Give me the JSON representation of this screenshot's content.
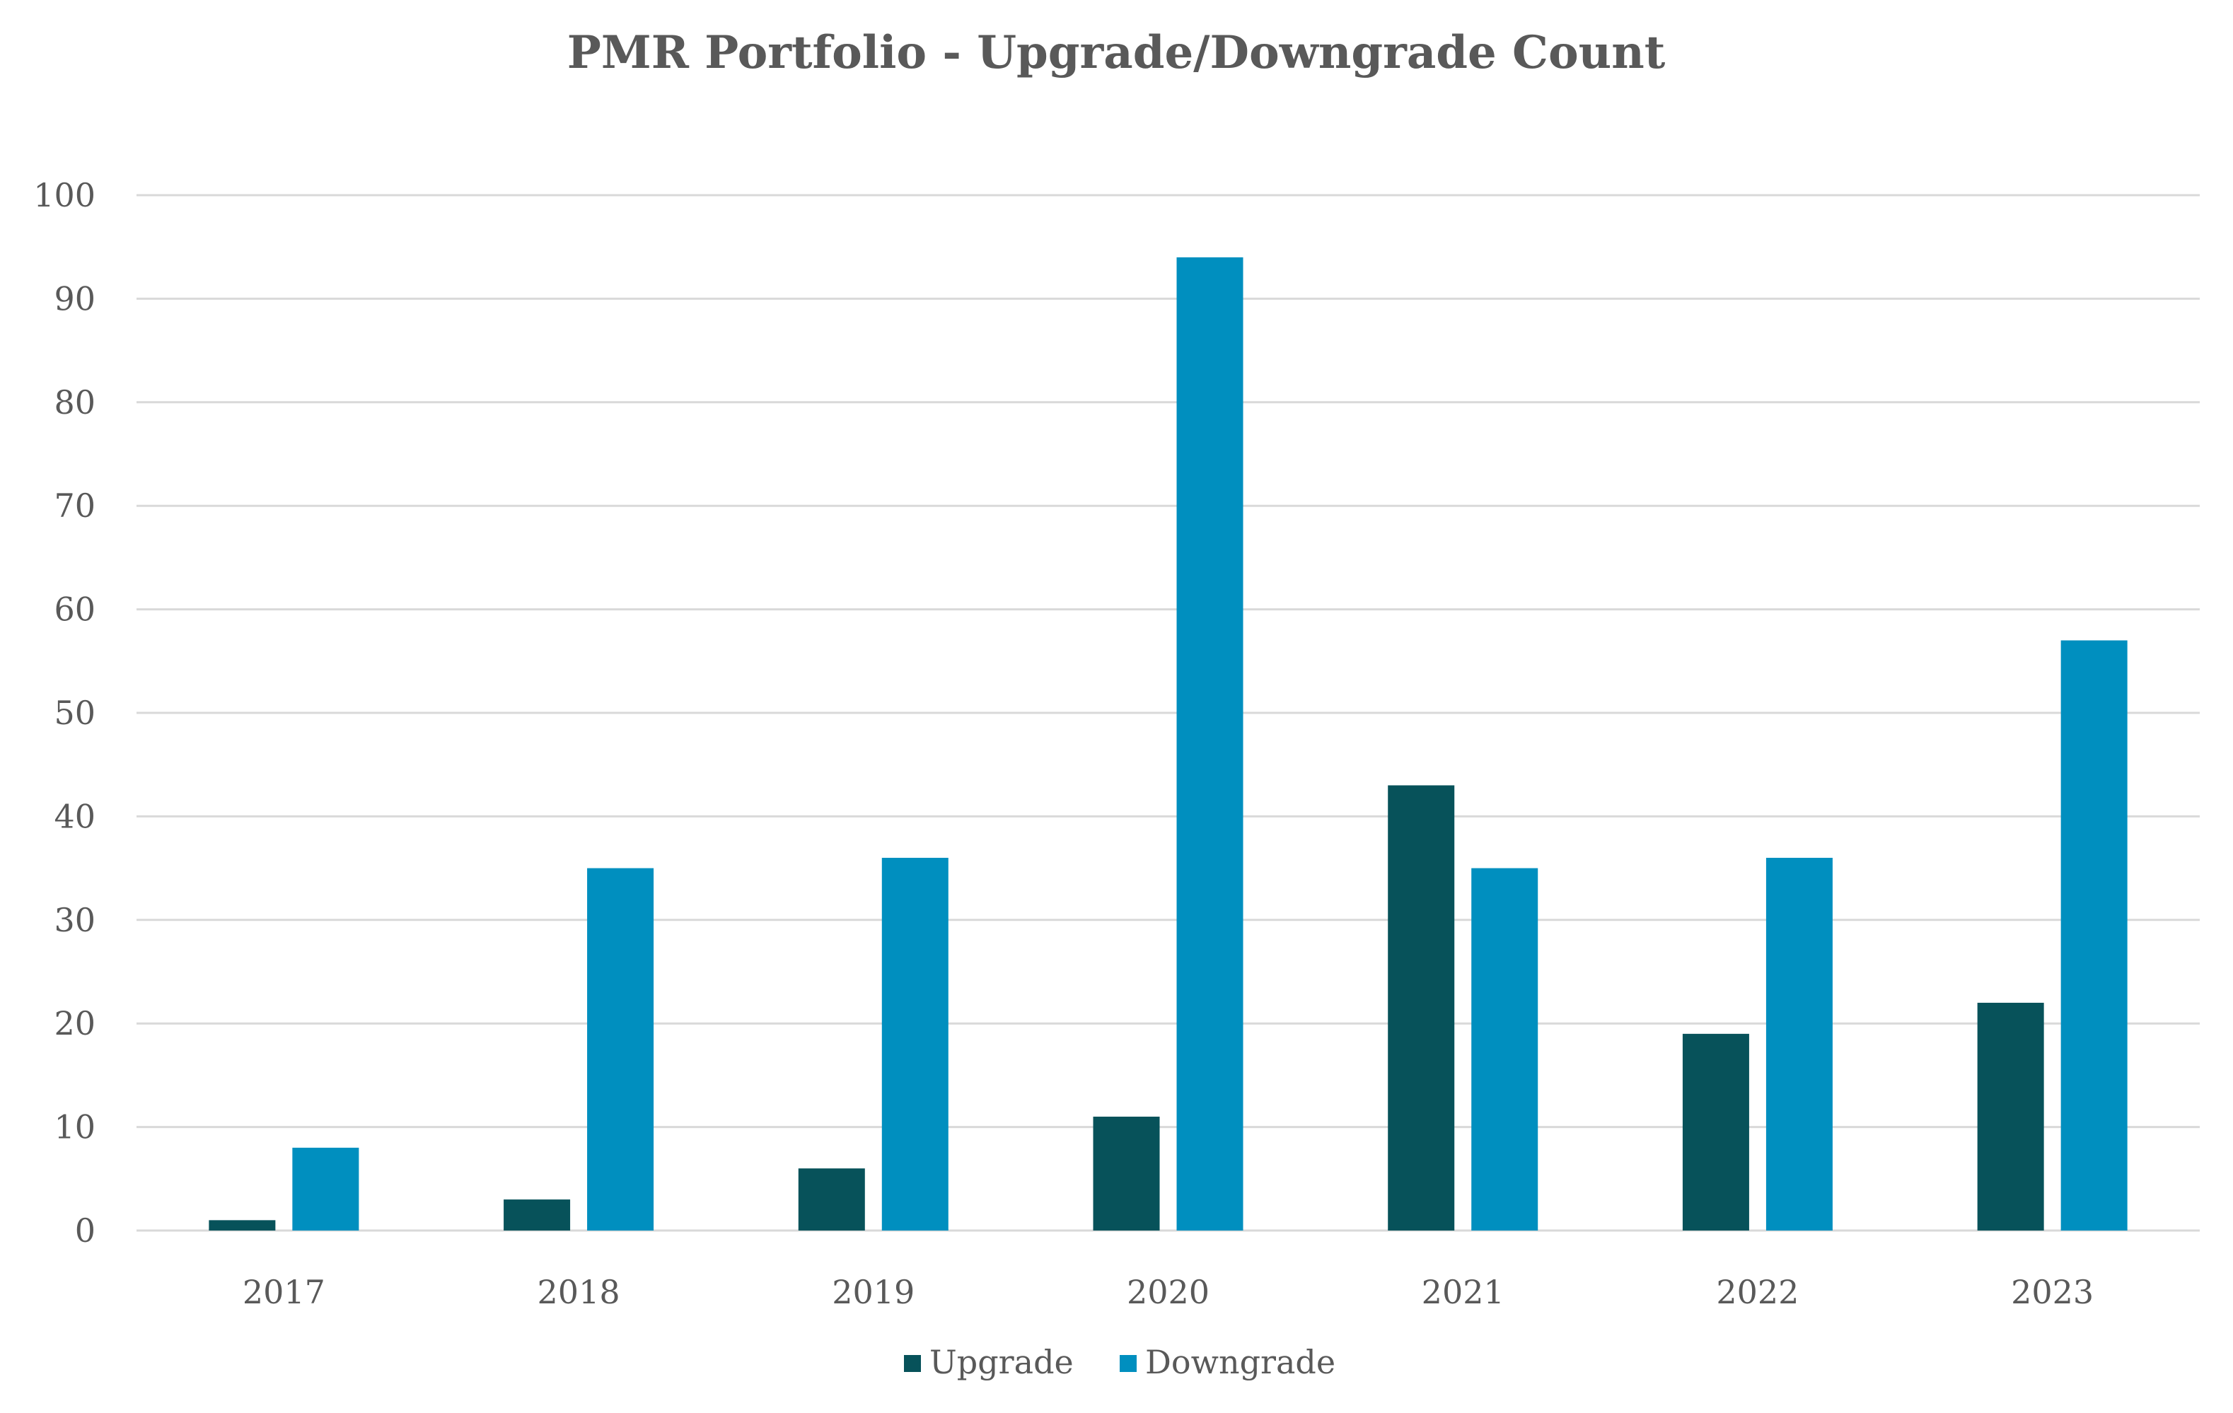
{
  "chart_data": {
    "type": "bar",
    "title": "PMR Portfolio - Upgrade/Downgrade Count",
    "xlabel": "",
    "ylabel": "",
    "categories": [
      "2017",
      "2018",
      "2019",
      "2020",
      "2021",
      "2022",
      "2023"
    ],
    "series": [
      {
        "name": "Upgrade",
        "color": "#07525a",
        "values": [
          1,
          3,
          6,
          11,
          43,
          19,
          22
        ]
      },
      {
        "name": "Downgrade",
        "color": "#008fbf",
        "values": [
          8,
          35,
          36,
          94,
          35,
          36,
          57
        ]
      }
    ],
    "ylim": [
      0,
      100
    ],
    "yticks": [
      0,
      10,
      20,
      30,
      40,
      50,
      60,
      70,
      80,
      90,
      100
    ],
    "grid": true,
    "legend_position": "bottom-center"
  }
}
